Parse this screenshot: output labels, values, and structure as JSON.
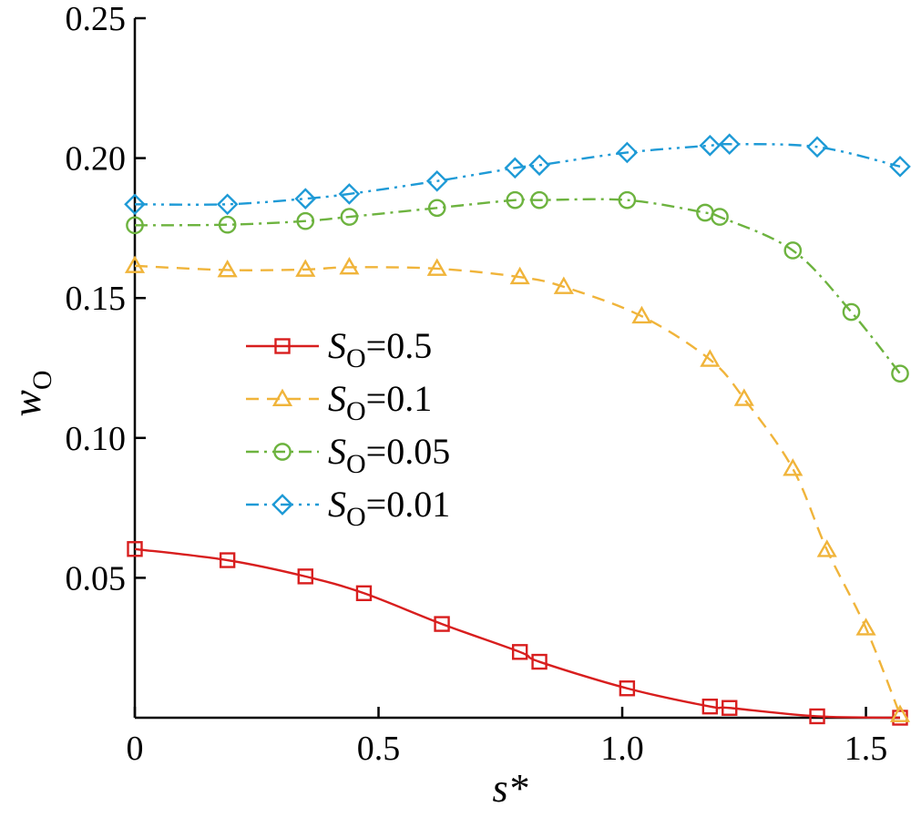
{
  "chart_data": {
    "type": "line",
    "xlabel": "s*",
    "ylabel": "w",
    "ylabel_subscript": "O",
    "xlim": [
      0,
      1.57
    ],
    "ylim": [
      0,
      0.25
    ],
    "x_ticks": [
      0,
      0.5,
      1.0,
      1.5
    ],
    "x_tick_labels": [
      "0",
      "0.5",
      "1.0",
      "1.5"
    ],
    "y_ticks": [
      0.05,
      0.1,
      0.15,
      0.2,
      0.25
    ],
    "y_tick_labels": [
      "0.05",
      "0.10",
      "0.15",
      "0.20",
      "0.25"
    ],
    "grid": false,
    "legend_position": "center-left",
    "series": [
      {
        "name": "S_O = 0.5",
        "legend_var": "S",
        "legend_sub": "O",
        "legend_value": "=0.5",
        "color": "#d81e1e",
        "marker": "square",
        "dash": "solid",
        "x": [
          0.0,
          0.19,
          0.35,
          0.47,
          0.63,
          0.79,
          0.83,
          1.01,
          1.18,
          1.22,
          1.4,
          1.57
        ],
        "y": [
          0.0603,
          0.0563,
          0.0505,
          0.0445,
          0.0335,
          0.0235,
          0.02,
          0.0105,
          0.004,
          0.0035,
          0.0005,
          0.0
        ]
      },
      {
        "name": "S_O = 0.1",
        "legend_var": "S",
        "legend_sub": "O",
        "legend_value": "=0.1",
        "color": "#f0b43a",
        "marker": "triangle",
        "dash": "dashed",
        "x": [
          0.0,
          0.19,
          0.35,
          0.44,
          0.62,
          0.79,
          0.88,
          1.04,
          1.18,
          1.25,
          1.35,
          1.42,
          1.5,
          1.57
        ],
        "y": [
          0.1615,
          0.16,
          0.1602,
          0.161,
          0.1605,
          0.1575,
          0.154,
          0.1435,
          0.128,
          0.114,
          0.089,
          0.06,
          0.032,
          0.001
        ]
      },
      {
        "name": "S_O = 0.05",
        "legend_var": "S",
        "legend_sub": "O",
        "legend_value": "=0.05",
        "color": "#6db33f",
        "marker": "circle",
        "dash": "dashdot",
        "x": [
          0.0,
          0.19,
          0.35,
          0.44,
          0.62,
          0.78,
          0.83,
          1.01,
          1.17,
          1.2,
          1.35,
          1.47,
          1.57
        ],
        "y": [
          0.176,
          0.1762,
          0.1775,
          0.179,
          0.1822,
          0.185,
          0.185,
          0.185,
          0.1805,
          0.179,
          0.167,
          0.145,
          0.123
        ]
      },
      {
        "name": "S_O = 0.01",
        "legend_var": "S",
        "legend_sub": "O",
        "legend_value": "=0.01",
        "color": "#1e9ad6",
        "marker": "diamond",
        "dash": "dashdotdot",
        "x": [
          0.0,
          0.19,
          0.35,
          0.44,
          0.62,
          0.78,
          0.83,
          1.01,
          1.18,
          1.22,
          1.4,
          1.57
        ],
        "y": [
          0.1835,
          0.1835,
          0.1855,
          0.1872,
          0.1918,
          0.1965,
          0.1975,
          0.202,
          0.2045,
          0.205,
          0.204,
          0.197
        ]
      }
    ]
  }
}
